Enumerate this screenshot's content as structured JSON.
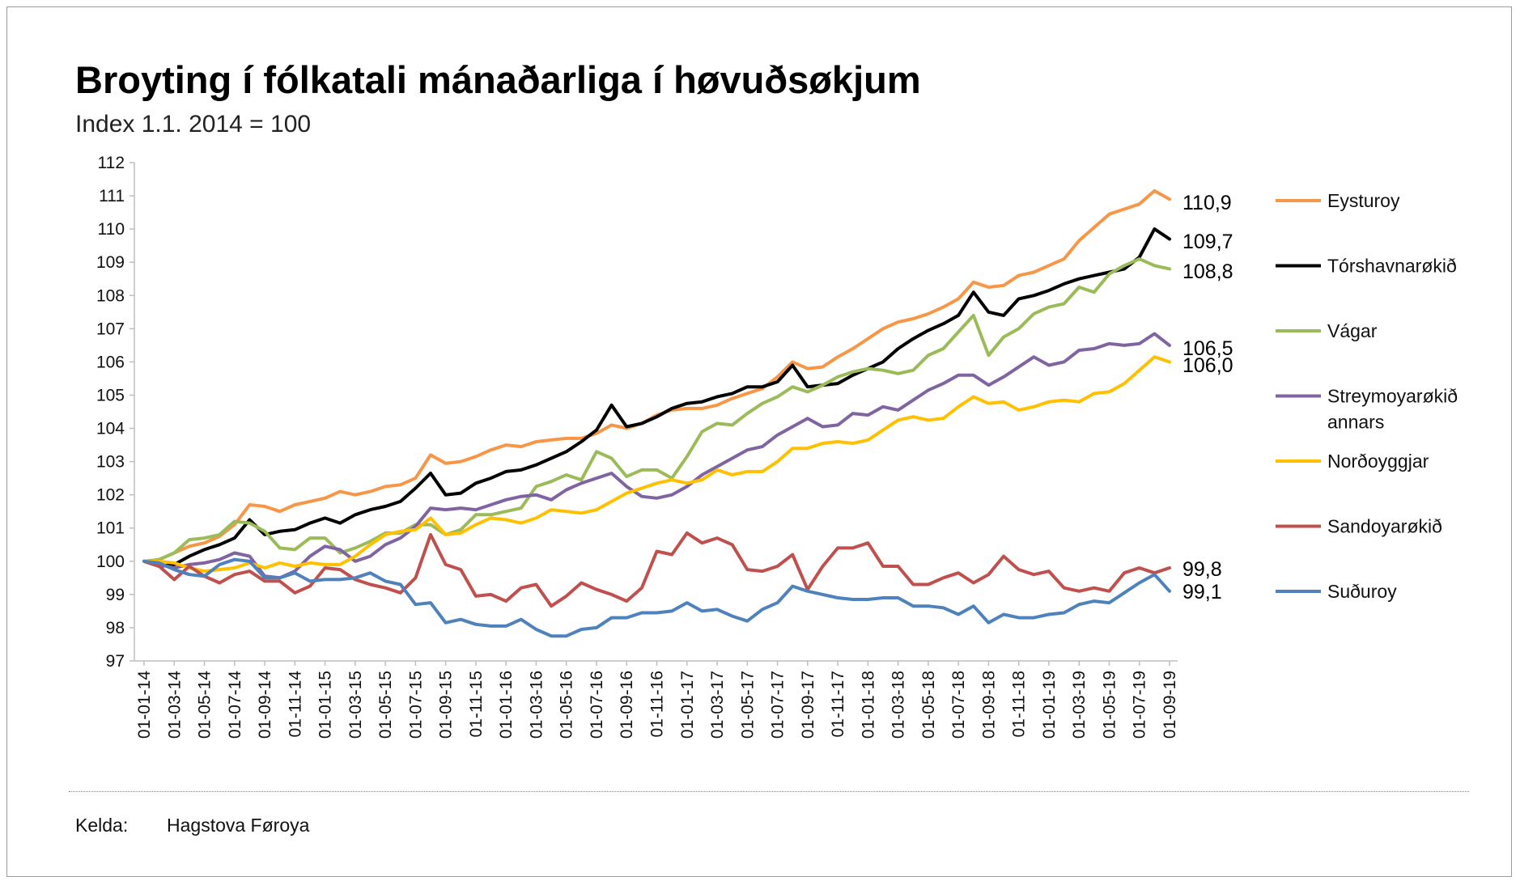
{
  "title": "Broyting í fólkatali mánaðarliga í høvuðsøkjum",
  "subtitle": "Index 1.1. 2014 = 100",
  "source": {
    "label": "Kelda:",
    "value": "Hagstova Føroya"
  },
  "chart_data": {
    "type": "line",
    "ylim": [
      97,
      112
    ],
    "yticks": [
      97,
      98,
      99,
      100,
      101,
      102,
      103,
      104,
      105,
      106,
      107,
      108,
      109,
      110,
      111,
      112
    ],
    "grid": false,
    "legend_position": "right",
    "x": [
      "01-01-14",
      "01-02-14",
      "01-03-14",
      "01-04-14",
      "01-05-14",
      "01-06-14",
      "01-07-14",
      "01-08-14",
      "01-09-14",
      "01-10-14",
      "01-11-14",
      "01-12-14",
      "01-01-15",
      "01-02-15",
      "01-03-15",
      "01-04-15",
      "01-05-15",
      "01-06-15",
      "01-07-15",
      "01-08-15",
      "01-09-15",
      "01-10-15",
      "01-11-15",
      "01-12-15",
      "01-01-16",
      "01-02-16",
      "01-03-16",
      "01-04-16",
      "01-05-16",
      "01-06-16",
      "01-07-16",
      "01-08-16",
      "01-09-16",
      "01-10-16",
      "01-11-16",
      "01-12-16",
      "01-01-17",
      "01-02-17",
      "01-03-17",
      "01-04-17",
      "01-05-17",
      "01-06-17",
      "01-07-17",
      "01-08-17",
      "01-09-17",
      "01-10-17",
      "01-11-17",
      "01-12-17",
      "01-01-18",
      "01-02-18",
      "01-03-18",
      "01-04-18",
      "01-05-18",
      "01-06-18",
      "01-07-18",
      "01-08-18",
      "01-09-18",
      "01-10-18",
      "01-11-18",
      "01-12-18",
      "01-01-19",
      "01-02-19",
      "01-03-19",
      "01-04-19",
      "01-05-19",
      "01-06-19",
      "01-07-19",
      "01-08-19",
      "01-09-19"
    ],
    "xticks": [
      "01-01-14",
      "01-03-14",
      "01-05-14",
      "01-07-14",
      "01-09-14",
      "01-11-14",
      "01-01-15",
      "01-03-15",
      "01-05-15",
      "01-07-15",
      "01-09-15",
      "01-11-15",
      "01-01-16",
      "01-03-16",
      "01-05-16",
      "01-07-16",
      "01-09-16",
      "01-11-16",
      "01-01-17",
      "01-03-17",
      "01-05-17",
      "01-07-17",
      "01-09-17",
      "01-11-17",
      "01-01-18",
      "01-03-18",
      "01-05-18",
      "01-07-18",
      "01-09-18",
      "01-11-18",
      "01-01-19",
      "01-03-19",
      "01-05-19",
      "01-07-19",
      "01-09-19"
    ],
    "series": [
      {
        "name": "Eysturoy",
        "color": "#F79646",
        "end_label": "110,9",
        "values": [
          100,
          100.05,
          100.25,
          100.45,
          100.55,
          100.75,
          101.1,
          101.7,
          101.65,
          101.5,
          101.7,
          101.8,
          101.9,
          102.1,
          102.0,
          102.1,
          102.25,
          102.3,
          102.5,
          103.2,
          102.95,
          103.0,
          103.15,
          103.35,
          103.5,
          103.45,
          103.6,
          103.65,
          103.7,
          103.7,
          103.85,
          104.1,
          104.0,
          104.15,
          104.4,
          104.55,
          104.6,
          104.6,
          104.7,
          104.9,
          105.05,
          105.2,
          105.55,
          106.0,
          105.8,
          105.85,
          106.15,
          106.4,
          106.7,
          107.0,
          107.2,
          107.3,
          107.45,
          107.65,
          107.9,
          108.4,
          108.25,
          108.3,
          108.6,
          108.7,
          108.9,
          109.1,
          109.65,
          110.05,
          110.45,
          110.6,
          110.75,
          111.15,
          110.9
        ]
      },
      {
        "name": "Tórshavnarøkið",
        "color": "#000000",
        "end_label": "109,7",
        "values": [
          100,
          99.85,
          99.9,
          100.15,
          100.35,
          100.5,
          100.7,
          101.25,
          100.8,
          100.9,
          100.95,
          101.15,
          101.3,
          101.15,
          101.4,
          101.55,
          101.65,
          101.8,
          102.2,
          102.65,
          102.0,
          102.05,
          102.35,
          102.5,
          102.7,
          102.75,
          102.9,
          103.1,
          103.3,
          103.6,
          103.95,
          104.7,
          104.05,
          104.15,
          104.35,
          104.6,
          104.75,
          104.8,
          104.95,
          105.05,
          105.25,
          105.25,
          105.4,
          105.9,
          105.25,
          105.3,
          105.35,
          105.6,
          105.8,
          106.0,
          106.4,
          106.7,
          106.95,
          107.15,
          107.4,
          108.1,
          107.5,
          107.4,
          107.9,
          108.0,
          108.15,
          108.35,
          108.5,
          108.6,
          108.7,
          108.8,
          109.15,
          110.0,
          109.7
        ]
      },
      {
        "name": "Vágar",
        "color": "#9BBB59",
        "end_label": "108,8",
        "values": [
          100,
          100.05,
          100.25,
          100.65,
          100.7,
          100.8,
          101.2,
          101.15,
          100.9,
          100.4,
          100.35,
          100.7,
          100.7,
          100.25,
          100.4,
          100.6,
          100.85,
          100.85,
          101.1,
          101.1,
          100.8,
          100.95,
          101.4,
          101.4,
          101.5,
          101.6,
          102.25,
          102.4,
          102.6,
          102.45,
          103.3,
          103.1,
          102.55,
          102.75,
          102.75,
          102.5,
          103.15,
          103.9,
          104.15,
          104.1,
          104.45,
          104.75,
          104.95,
          105.25,
          105.1,
          105.3,
          105.55,
          105.7,
          105.8,
          105.75,
          105.65,
          105.75,
          106.2,
          106.4,
          106.9,
          107.4,
          106.2,
          106.75,
          107.0,
          107.45,
          107.65,
          107.75,
          108.25,
          108.1,
          108.65,
          108.9,
          109.1,
          108.9,
          108.8
        ]
      },
      {
        "name": "Streymoyarøkið annars",
        "color": "#8064A2",
        "end_label": "106,5",
        "values": [
          100,
          99.9,
          99.8,
          99.9,
          99.95,
          100.05,
          100.25,
          100.15,
          99.55,
          99.5,
          99.7,
          100.15,
          100.45,
          100.35,
          100.0,
          100.15,
          100.5,
          100.7,
          101.05,
          101.6,
          101.55,
          101.6,
          101.55,
          101.7,
          101.85,
          101.95,
          102.0,
          101.85,
          102.15,
          102.35,
          102.5,
          102.65,
          102.25,
          101.95,
          101.9,
          102.0,
          102.25,
          102.6,
          102.85,
          103.1,
          103.35,
          103.45,
          103.8,
          104.05,
          104.3,
          104.05,
          104.1,
          104.45,
          104.4,
          104.65,
          104.55,
          104.85,
          105.15,
          105.35,
          105.6,
          105.6,
          105.3,
          105.55,
          105.85,
          106.15,
          105.9,
          106.0,
          106.35,
          106.4,
          106.55,
          106.5,
          106.55,
          106.85,
          106.5
        ]
      },
      {
        "name": "Norðoyggjar",
        "color": "#FFC000",
        "end_label": "106,0",
        "values": [
          100,
          100.0,
          99.95,
          99.8,
          99.7,
          99.75,
          99.8,
          99.95,
          99.8,
          99.95,
          99.85,
          99.95,
          99.9,
          99.9,
          100.15,
          100.5,
          100.8,
          100.9,
          100.95,
          101.3,
          100.8,
          100.85,
          101.1,
          101.3,
          101.25,
          101.15,
          101.3,
          101.55,
          101.5,
          101.45,
          101.55,
          101.8,
          102.05,
          102.2,
          102.35,
          102.45,
          102.35,
          102.45,
          102.75,
          102.6,
          102.7,
          102.7,
          103.0,
          103.4,
          103.4,
          103.55,
          103.6,
          103.55,
          103.65,
          103.95,
          104.25,
          104.35,
          104.25,
          104.3,
          104.65,
          104.95,
          104.75,
          104.8,
          104.55,
          104.65,
          104.8,
          104.85,
          104.8,
          105.05,
          105.1,
          105.35,
          105.75,
          106.15,
          106.0
        ]
      },
      {
        "name": "Sandoyarøkið",
        "color": "#C0504D",
        "end_label": "99,8",
        "values": [
          100,
          99.85,
          99.45,
          99.85,
          99.55,
          99.35,
          99.6,
          99.7,
          99.4,
          99.4,
          99.05,
          99.25,
          99.8,
          99.75,
          99.45,
          99.3,
          99.2,
          99.05,
          99.5,
          100.8,
          99.9,
          99.75,
          98.95,
          99.0,
          98.8,
          99.2,
          99.3,
          98.65,
          98.95,
          99.35,
          99.15,
          99.0,
          98.8,
          99.2,
          100.3,
          100.2,
          100.85,
          100.55,
          100.7,
          100.5,
          99.75,
          99.7,
          99.85,
          100.2,
          99.15,
          99.85,
          100.4,
          100.4,
          100.55,
          99.85,
          99.85,
          99.3,
          99.3,
          99.5,
          99.65,
          99.35,
          99.6,
          100.15,
          99.75,
          99.6,
          99.7,
          99.2,
          99.1,
          99.2,
          99.1,
          99.65,
          99.8,
          99.65,
          99.8
        ]
      },
      {
        "name": "Suðuroy",
        "color": "#4F81BD",
        "end_label": "99,1",
        "values": [
          100,
          99.95,
          99.75,
          99.6,
          99.55,
          99.9,
          100.05,
          100.0,
          99.5,
          99.5,
          99.65,
          99.4,
          99.45,
          99.45,
          99.5,
          99.65,
          99.4,
          99.3,
          98.7,
          98.75,
          98.15,
          98.25,
          98.1,
          98.05,
          98.05,
          98.25,
          97.95,
          97.75,
          97.75,
          97.95,
          98.0,
          98.3,
          98.3,
          98.45,
          98.45,
          98.5,
          98.75,
          98.5,
          98.55,
          98.35,
          98.2,
          98.55,
          98.75,
          99.25,
          99.1,
          99.0,
          98.9,
          98.85,
          98.85,
          98.9,
          98.9,
          98.65,
          98.65,
          98.6,
          98.4,
          98.65,
          98.15,
          98.4,
          98.3,
          98.3,
          98.4,
          98.45,
          98.7,
          98.8,
          98.75,
          99.05,
          99.35,
          99.6,
          99.1
        ]
      }
    ]
  }
}
